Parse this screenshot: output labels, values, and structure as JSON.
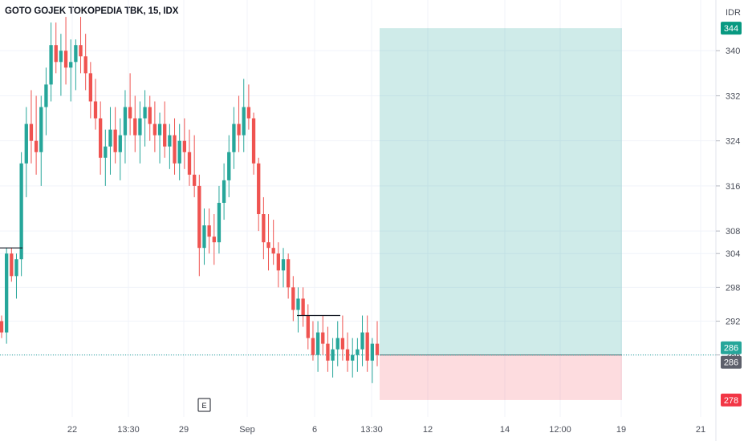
{
  "symbol_title": "GOTO GOJEK TOKOPEDIA TBK, 15, IDX",
  "currency": "IDR",
  "earnings_marker": "E",
  "colors": {
    "up": "#26a69a",
    "down": "#ef5350",
    "profit_zone": "#26a69a",
    "loss_zone": "#f7525f",
    "last_price_badge": "#5d606b",
    "target_badge": "#089981",
    "stop_badge": "#f23645"
  },
  "chart_data": {
    "type": "candlestick",
    "title": "GOTO GOJEK TOKOPEDIA TBK, 15, IDX",
    "y_axis_ticks": [
      "340",
      "332",
      "324",
      "316",
      "308",
      "304",
      "298",
      "292",
      "286"
    ],
    "x_axis_ticks": [
      "22",
      "13:30",
      "29",
      "Sep",
      "6",
      "13:30",
      "12",
      "14",
      "12:00",
      "19",
      "21"
    ],
    "ylim": [
      275,
      349
    ],
    "price_levels": {
      "last_price": 286,
      "entry": 286,
      "target": 344,
      "stop": 278
    },
    "badges": [
      "344",
      "286",
      "286",
      "278"
    ],
    "position_tool": {
      "type": "long",
      "entry": 286,
      "take_profit": 344,
      "stop_loss": 278
    },
    "candles": [
      [
        292,
        293,
        289,
        290
      ],
      [
        290,
        305,
        288,
        304
      ],
      [
        304,
        305,
        299,
        300
      ],
      [
        300,
        304,
        296,
        303
      ],
      [
        303,
        322,
        300,
        320
      ],
      [
        320,
        330,
        314,
        327
      ],
      [
        327,
        333,
        320,
        324
      ],
      [
        324,
        332,
        318,
        322
      ],
      [
        322,
        332,
        316,
        330
      ],
      [
        330,
        337,
        325,
        334
      ],
      [
        334,
        345,
        331,
        341
      ],
      [
        341,
        345,
        336,
        338
      ],
      [
        338,
        343,
        332,
        340
      ],
      [
        340,
        346,
        334,
        337
      ],
      [
        337,
        342,
        331,
        338
      ],
      [
        338,
        342,
        333,
        341
      ],
      [
        341,
        346,
        336,
        339
      ],
      [
        339,
        343,
        333,
        336
      ],
      [
        336,
        338,
        328,
        331
      ],
      [
        331,
        335,
        326,
        328
      ],
      [
        328,
        331,
        318,
        321
      ],
      [
        321,
        326,
        316,
        323
      ],
      [
        323,
        330,
        318,
        326
      ],
      [
        326,
        330,
        320,
        322
      ],
      [
        322,
        328,
        317,
        325
      ],
      [
        325,
        333,
        320,
        330
      ],
      [
        330,
        336,
        325,
        328
      ],
      [
        328,
        332,
        322,
        325
      ],
      [
        325,
        331,
        320,
        328
      ],
      [
        328,
        333,
        323,
        330
      ],
      [
        330,
        332,
        324,
        327
      ],
      [
        327,
        331,
        322,
        325
      ],
      [
        325,
        329,
        320,
        327
      ],
      [
        327,
        331,
        321,
        323
      ],
      [
        323,
        327,
        319,
        325
      ],
      [
        325,
        328,
        318,
        320
      ],
      [
        320,
        327,
        317,
        324
      ],
      [
        324,
        328,
        319,
        322
      ],
      [
        322,
        326,
        316,
        318
      ],
      [
        318,
        325,
        314,
        316
      ],
      [
        316,
        318,
        300,
        305
      ],
      [
        305,
        312,
        302,
        309
      ],
      [
        309,
        312,
        304,
        307
      ],
      [
        307,
        311,
        302,
        306
      ],
      [
        306,
        316,
        304,
        313
      ],
      [
        313,
        320,
        310,
        317
      ],
      [
        317,
        325,
        314,
        322
      ],
      [
        322,
        330,
        319,
        327
      ],
      [
        327,
        332,
        322,
        325
      ],
      [
        325,
        335,
        322,
        330
      ],
      [
        330,
        334,
        326,
        328
      ],
      [
        328,
        329,
        318,
        320
      ],
      [
        320,
        321,
        308,
        311
      ],
      [
        311,
        314,
        303,
        306
      ],
      [
        306,
        311,
        301,
        305
      ],
      [
        305,
        310,
        302,
        304
      ],
      [
        304,
        306,
        298,
        301
      ],
      [
        301,
        305,
        298,
        303
      ],
      [
        303,
        304,
        296,
        298
      ],
      [
        298,
        300,
        292,
        294
      ],
      [
        294,
        298,
        290,
        296
      ],
      [
        296,
        298,
        291,
        293
      ],
      [
        293,
        295,
        287,
        289
      ],
      [
        289,
        292,
        285,
        286
      ],
      [
        286,
        292,
        283,
        290
      ],
      [
        290,
        293,
        286,
        288
      ],
      [
        288,
        291,
        283,
        285
      ],
      [
        285,
        289,
        282,
        287
      ],
      [
        287,
        292,
        284,
        289
      ],
      [
        289,
        293,
        285,
        287
      ],
      [
        287,
        290,
        283,
        285
      ],
      [
        285,
        289,
        282,
        286
      ],
      [
        286,
        289,
        283,
        287
      ],
      [
        287,
        293,
        284,
        290
      ],
      [
        290,
        293,
        283,
        285
      ],
      [
        285,
        289,
        281,
        288
      ],
      [
        288,
        292,
        284,
        286
      ]
    ]
  }
}
